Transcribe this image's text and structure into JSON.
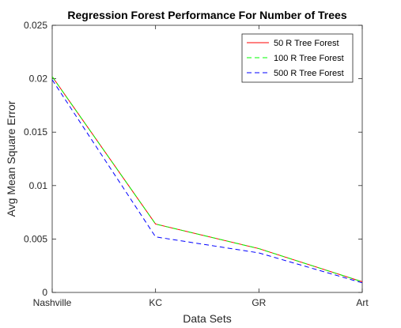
{
  "chart_data": {
    "type": "line",
    "title": "Regression Forest Performance For Number of Trees",
    "xlabel": "Data Sets",
    "ylabel": "Avg Mean Square Error",
    "categories": [
      "Nashville",
      "KC",
      "GR",
      "Art"
    ],
    "ylim": [
      0,
      0.025
    ],
    "yticks": [
      "0",
      "0.005",
      "0.01",
      "0.015",
      "0.02",
      "0.025"
    ],
    "ytick_values": [
      0,
      0.005,
      0.01,
      0.015,
      0.02,
      0.025
    ],
    "grid": false,
    "legend_position": "top-right",
    "series": [
      {
        "name": "50 R Tree Forest",
        "values": [
          0.0202,
          0.0064,
          0.0041,
          0.001
        ],
        "color": "#ff0000",
        "dash": "solid"
      },
      {
        "name": "100 R Tree Forest",
        "values": [
          0.0202,
          0.0064,
          0.0041,
          0.001
        ],
        "color": "#00ff00",
        "dash": "dashed"
      },
      {
        "name": "500 R Tree Forest",
        "values": [
          0.0199,
          0.0052,
          0.0037,
          0.0009
        ],
        "color": "#0000ff",
        "dash": "dashed"
      }
    ]
  }
}
